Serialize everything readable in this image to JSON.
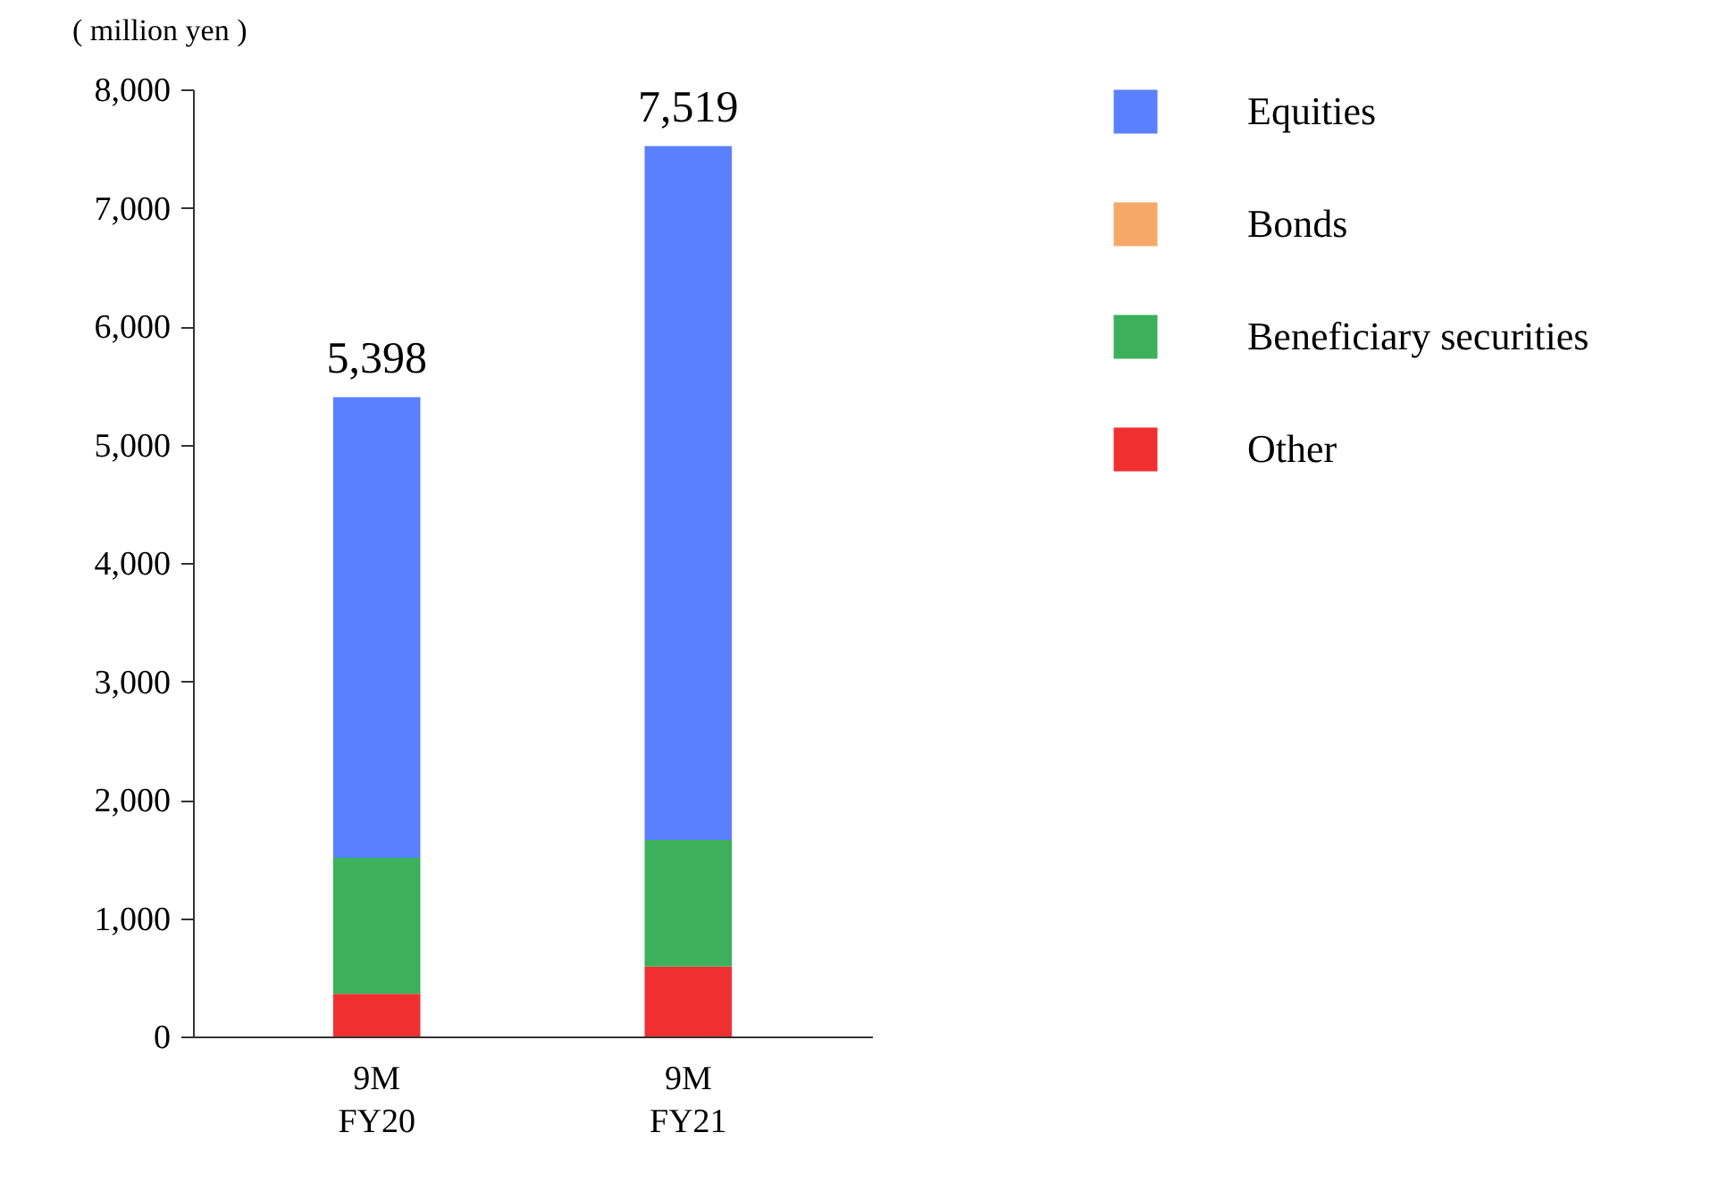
{
  "chart_data": {
    "type": "bar",
    "stacked": true,
    "ylabel": "( million yen )",
    "categories": [
      "9M FY20",
      "9M FY21"
    ],
    "series": [
      {
        "name": "Other",
        "color": "#f03030",
        "values": [
          360,
          590
        ]
      },
      {
        "name": "Beneficiary securities",
        "color": "#3cb05a",
        "values": [
          1150,
          1070
        ]
      },
      {
        "name": "Bonds",
        "color": "#f6a869",
        "values": [
          0,
          0
        ]
      },
      {
        "name": "Equities",
        "color": "#5a7fff",
        "values": [
          3890,
          5860
        ]
      }
    ],
    "totals": [
      "5,398",
      "7,519"
    ],
    "ylim": [
      0,
      8000
    ],
    "yticks": [
      0,
      {
        "value": 1000,
        "label": "1,000"
      },
      {
        "value": 2000,
        "label": "2,000"
      },
      {
        "value": 3000,
        "label": "3,000"
      },
      {
        "value": 4000,
        "label": "4,000"
      },
      {
        "value": 5000,
        "label": "5,000"
      },
      {
        "value": 6000,
        "label": "6,000"
      },
      {
        "value": 7000,
        "label": "7,000"
      },
      {
        "value": 8000,
        "label": "8,000"
      }
    ],
    "grid": false,
    "legend": "right"
  }
}
